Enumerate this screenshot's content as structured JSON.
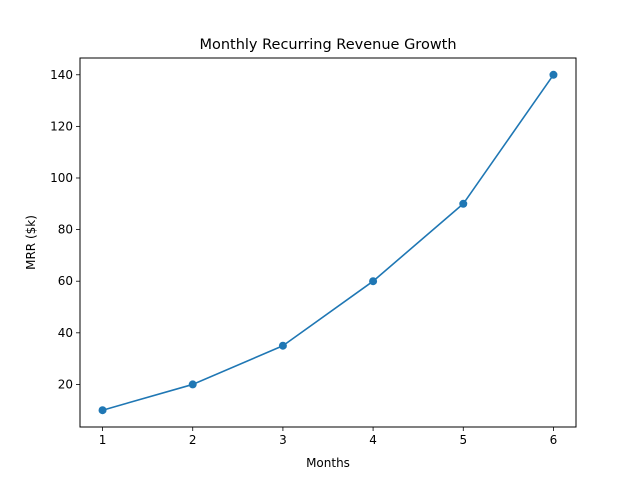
{
  "chart_data": {
    "type": "line",
    "title": "Monthly Recurring Revenue Growth",
    "xlabel": "Months",
    "ylabel": "MRR ($k)",
    "x": [
      1,
      2,
      3,
      4,
      5,
      6
    ],
    "series": [
      {
        "values": [
          10,
          20,
          35,
          60,
          90,
          140
        ],
        "color": "#1f77b4",
        "marker": "circle"
      }
    ],
    "xticks": [
      1,
      2,
      3,
      4,
      5,
      6
    ],
    "yticks": [
      20,
      40,
      60,
      80,
      100,
      120,
      140
    ],
    "xlim": [
      0.75,
      6.25
    ],
    "ylim": [
      3.5,
      146.5
    ],
    "grid": false
  }
}
